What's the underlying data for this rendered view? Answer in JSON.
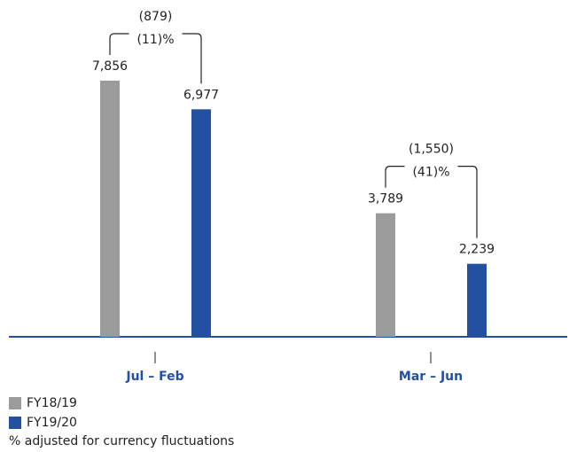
{
  "chart_data": {
    "type": "bar",
    "categories": [
      "Jul – Feb",
      "Mar – Jun"
    ],
    "series": [
      {
        "name": "FY18/19",
        "color": "#9b9b9b",
        "values": [
          7856,
          3789
        ],
        "value_labels": [
          "7,856",
          "3,789"
        ]
      },
      {
        "name": "FY19/20",
        "color": "#2350a0",
        "values": [
          6977,
          2239
        ],
        "value_labels": [
          "6,977",
          "2,239"
        ]
      }
    ],
    "annotations": [
      {
        "change": "(879)",
        "percent": "(11)%"
      },
      {
        "change": "(1,550)",
        "percent": "(41)%"
      }
    ],
    "footnote": "% adjusted for currency fluctuations"
  }
}
